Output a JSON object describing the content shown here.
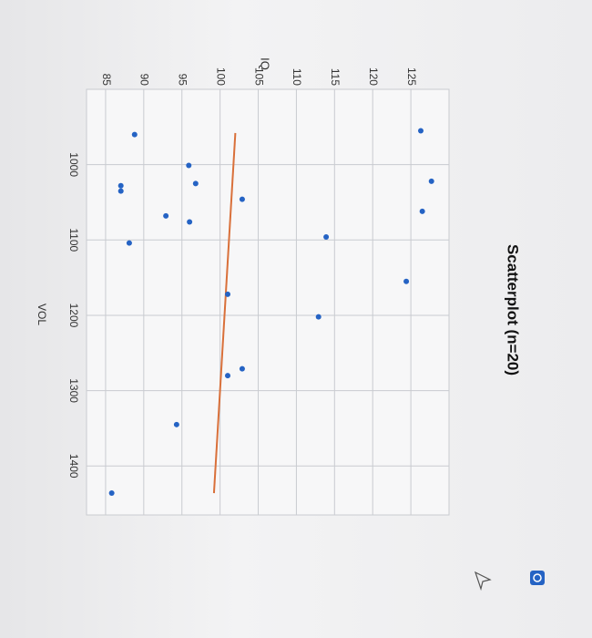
{
  "chart_data": {
    "type": "scatter",
    "title": "Scatterplot (n=20)",
    "x_label": "VOL",
    "y_label": "IQ",
    "series": [
      {
        "color": "#2563c4",
        "x": [
          1022,
          1062,
          1155,
          1096,
          1202,
          1046,
          1271,
          1172,
          1280,
          1025,
          1001,
          1076,
          1345,
          1068,
          960,
          1104,
          1028,
          1035,
          1436,
          955
        ],
        "y": [
          127.7,
          126.5,
          124.4,
          113.9,
          112.9,
          102.9,
          102.9,
          101.0,
          101.0,
          96.8,
          95.9,
          96.0,
          94.3,
          92.9,
          88.8,
          88.1,
          87.0,
          87.0,
          85.8,
          126.3
        ]
      }
    ],
    "trend_line": {
      "color": "#d9703a",
      "x": [
        958,
        1436
      ],
      "y": [
        102.0,
        99.2
      ]
    },
    "xlim": [
      900,
      1465
    ],
    "ylim": [
      82.5,
      130
    ],
    "xticks": [
      1000,
      1100,
      1200,
      1300,
      1400
    ],
    "yticks": [
      85,
      90,
      95,
      100,
      105,
      110,
      115,
      120,
      125
    ],
    "grid": true
  }
}
